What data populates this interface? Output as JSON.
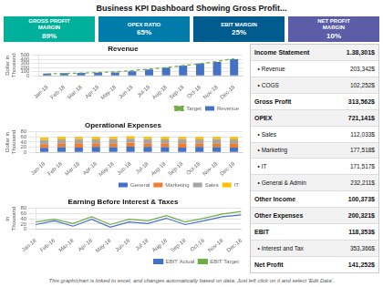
{
  "title": "Business KPI Dashboard Showing Gross Profit...",
  "kpi_boxes": [
    {
      "label": "GROSS PROFIT\nMARGIN",
      "value": "89%",
      "color": "#00B09A"
    },
    {
      "label": "OPEX RATIO",
      "value": "65%",
      "color": "#007BAA"
    },
    {
      "label": "EBIT MARGIN",
      "value": "25%",
      "color": "#005B8E"
    },
    {
      "label": "NET PROFIT\nMARGIN",
      "value": "10%",
      "color": "#5B5EA6"
    }
  ],
  "income_statement": [
    {
      "label": "Income Statement",
      "value": "1.38,301$",
      "bold": true
    },
    {
      "label": "  • Revenue",
      "value": "203,342$",
      "bold": false
    },
    {
      "label": "  • COGS",
      "value": "102,252$",
      "bold": false
    },
    {
      "label": "Gross Profit",
      "value": "313,562$",
      "bold": true
    },
    {
      "label": "OPEX",
      "value": "721,141$",
      "bold": true
    },
    {
      "label": "  • Sales",
      "value": "112,033$",
      "bold": false
    },
    {
      "label": "  • Marketing",
      "value": "177,518$",
      "bold": false
    },
    {
      "label": "  • IT",
      "value": "171,517$",
      "bold": false
    },
    {
      "label": "  • General & Admin",
      "value": "232,211$",
      "bold": false
    },
    {
      "label": "Other Income",
      "value": "100,373$",
      "bold": true
    },
    {
      "label": "Other Expenses",
      "value": "200,321$",
      "bold": true
    },
    {
      "label": "EBIT",
      "value": "118,353$",
      "bold": true
    },
    {
      "label": "  • Interest and Tax",
      "value": "353,366$",
      "bold": false
    },
    {
      "label": "Net Profit",
      "value": "141,252$",
      "bold": true
    }
  ],
  "footer": "This graph/chart is linked to excel, and changes automatically based on data.  Just left click on it and select 'Edit Data'.",
  "chart_data": [
    {
      "type": "bar",
      "title": "Revenue",
      "ylabel": "Dollar in\nThousand",
      "categories": [
        "Jan-18",
        "Feb-18",
        "Mar-18",
        "Apr-18",
        "May-18",
        "Jun-18",
        "Jul-18",
        "Aug-18",
        "Sep-18",
        "Oct-18",
        "Nov-18",
        "Dec-18"
      ],
      "series": [
        {
          "name": "Revenue",
          "color": "#4472C4",
          "values": [
            55,
            65,
            70,
            75,
            80,
            110,
            150,
            195,
            245,
            295,
            335,
            405
          ]
        },
        {
          "name": "Target",
          "type": "line",
          "color": "#70AD47",
          "line_style": "dashed",
          "marker": "none",
          "values": [
            45,
            58,
            65,
            78,
            98,
            125,
            162,
            200,
            248,
            292,
            348,
            418
          ]
        }
      ],
      "ylim": [
        0,
        500
      ],
      "yticks": [
        0,
        100,
        200,
        300,
        400,
        500
      ],
      "grid": "y",
      "legend": "lower right"
    },
    {
      "type": "bar",
      "title": "Operational Expenses",
      "ylabel": "Dollar in\nThousand",
      "stacked": true,
      "categories": [
        "Jan-18",
        "Feb-18",
        "Mar-18",
        "Apr-18",
        "May-18",
        "Jun-18",
        "Jul-18",
        "Aug-18",
        "Sep-18",
        "Oct-18",
        "Nov-18",
        "Dec-18"
      ],
      "series": [
        {
          "name": "General",
          "color": "#4472C4",
          "values": [
            18,
            20,
            19,
            21,
            20,
            22,
            21,
            20,
            19,
            21,
            20,
            19
          ]
        },
        {
          "name": "Marketing",
          "color": "#ED7D31",
          "values": [
            14,
            15,
            16,
            14,
            15,
            16,
            14,
            15,
            16,
            14,
            15,
            16
          ]
        },
        {
          "name": "Sales",
          "color": "#A5A5A5",
          "values": [
            16,
            15,
            16,
            15,
            16,
            15,
            16,
            15,
            16,
            15,
            16,
            15
          ]
        },
        {
          "name": "IT",
          "color": "#FFC000",
          "values": [
            9,
            10,
            9,
            10,
            9,
            10,
            9,
            10,
            9,
            10,
            9,
            10
          ]
        }
      ],
      "ylim": [
        0,
        80
      ],
      "yticks": [
        0,
        20,
        40,
        60,
        80
      ],
      "grid": "y",
      "legend": "lower right"
    },
    {
      "type": "line",
      "title": "Earning Before Interest & Taxes",
      "ylabel": "In\nThousand",
      "categories": [
        "Jan-18",
        "Feb-18",
        "Mar-18",
        "Apr-18",
        "May-18",
        "Jun-18",
        "Jul-18",
        "Aug-18",
        "Sep-18",
        "Oct-18",
        "Nov-18",
        "Dec-18"
      ],
      "series": [
        {
          "name": "EBIT Actual",
          "color": "#4472C4",
          "marker": "none",
          "values": [
            18,
            32,
            12,
            38,
            8,
            28,
            22,
            42,
            18,
            32,
            48,
            55
          ]
        },
        {
          "name": "EBIT Target",
          "color": "#70AD47",
          "marker": "none",
          "values": [
            28,
            38,
            22,
            48,
            18,
            38,
            32,
            52,
            28,
            42,
            58,
            68
          ]
        }
      ],
      "ylim": [
        0,
        80
      ],
      "yticks": [
        0,
        20,
        40,
        60,
        80
      ],
      "grid": "y",
      "legend": "lower right"
    }
  ]
}
